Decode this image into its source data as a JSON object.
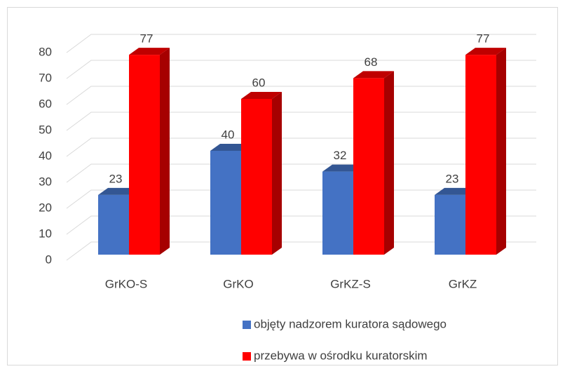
{
  "chart_data": {
    "type": "bar3d",
    "categories": [
      "GrKO-S",
      "GrKO",
      "GrKZ-S",
      "GrKZ"
    ],
    "series": [
      {
        "name": "objęty nadzorem kuratora sądowego",
        "color": "#4472c4",
        "values": [
          23,
          40,
          32,
          23
        ]
      },
      {
        "name": "przebywa w ośrodku kuratorskim",
        "color": "#ff0000",
        "values": [
          77,
          60,
          68,
          77
        ]
      }
    ],
    "ylim": [
      0,
      80
    ],
    "yticks": [
      0,
      10,
      20,
      30,
      40,
      50,
      60,
      70,
      80
    ],
    "grid": true,
    "legend": "bottom"
  }
}
